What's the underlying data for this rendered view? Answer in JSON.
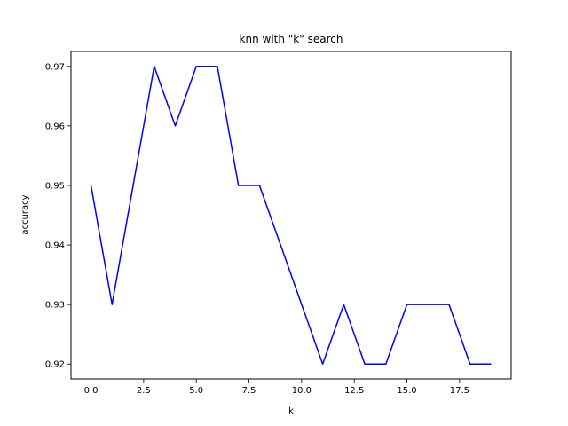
{
  "chart_data": {
    "type": "line",
    "title": "knn with \"k\" search",
    "xlabel": "k",
    "ylabel": "accuracy",
    "xlim": [
      -0.95,
      19.95
    ],
    "ylim": [
      0.9175,
      0.9725
    ],
    "x_ticks": [
      0,
      2.5,
      5,
      7.5,
      10,
      12.5,
      15,
      17.5
    ],
    "x_tick_labels": [
      "0.0",
      "2.5",
      "5.0",
      "7.5",
      "10.0",
      "12.5",
      "15.0",
      "17.5"
    ],
    "y_ticks": [
      0.92,
      0.93,
      0.94,
      0.95,
      0.96,
      0.97
    ],
    "y_tick_labels": [
      "0.92",
      "0.93",
      "0.94",
      "0.95",
      "0.96",
      "0.97"
    ],
    "grid": false,
    "series": [
      {
        "color": "#0000ff",
        "x": [
          0,
          1,
          2,
          3,
          4,
          5,
          6,
          7,
          8,
          9,
          10,
          11,
          12,
          13,
          14,
          15,
          16,
          17,
          18,
          19
        ],
        "y": [
          0.95,
          0.93,
          0.95,
          0.97,
          0.96,
          0.97,
          0.97,
          0.95,
          0.95,
          0.94,
          0.93,
          0.92,
          0.93,
          0.92,
          0.92,
          0.93,
          0.93,
          0.93,
          0.92,
          0.92
        ]
      }
    ]
  }
}
